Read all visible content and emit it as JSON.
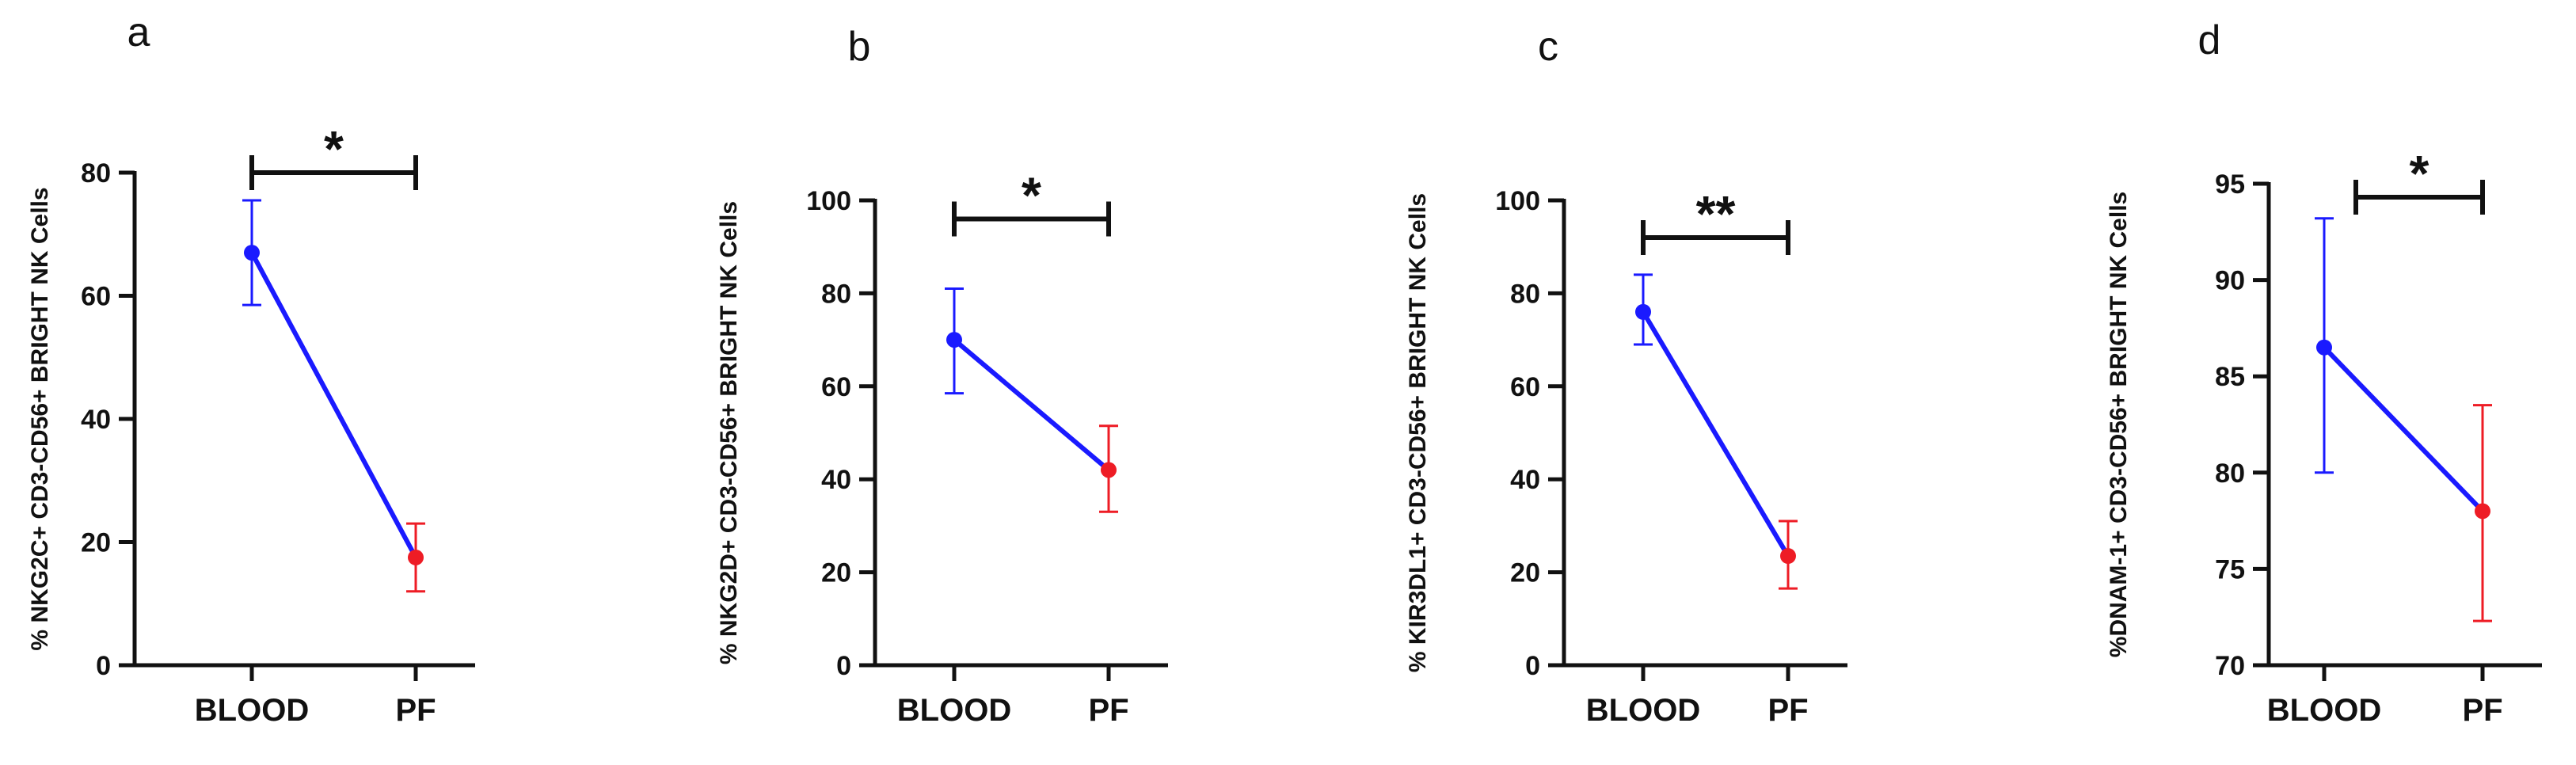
{
  "chart_data": [
    {
      "type": "line",
      "panel": "a",
      "ylabel": "% NKG2C+ CD3-CD56+ BRIGHT NK Cells",
      "categories": [
        "BLOOD",
        "PF"
      ],
      "ylim": [
        0,
        80
      ],
      "yticks": [
        0,
        20,
        40,
        60,
        80
      ],
      "series": [
        {
          "values": [
            67,
            17.5
          ],
          "err_low": [
            58.5,
            12
          ],
          "err_high": [
            75.5,
            23
          ],
          "point_colors": [
            "#1a1aff",
            "#ee1c25"
          ]
        }
      ],
      "significance": {
        "label": "*",
        "from": 0,
        "to": 1,
        "y": 80
      },
      "line_color": "#1a1aff"
    },
    {
      "type": "line",
      "panel": "b",
      "ylabel": "% NKG2D+ CD3-CD56+ BRIGHT NK Cells",
      "categories": [
        "BLOOD",
        "PF"
      ],
      "ylim": [
        0,
        100
      ],
      "yticks": [
        0,
        20,
        40,
        60,
        80,
        100
      ],
      "series": [
        {
          "values": [
            70,
            42
          ],
          "err_low": [
            58.5,
            33
          ],
          "err_high": [
            81,
            51.5
          ],
          "point_colors": [
            "#1a1aff",
            "#ee1c25"
          ]
        }
      ],
      "significance": {
        "label": "*",
        "from": 0,
        "to": 1,
        "y": 96
      },
      "line_color": "#1a1aff"
    },
    {
      "type": "line",
      "panel": "c",
      "ylabel": "% KIR3DL1+ CD3-CD56+ BRIGHT NK Cells",
      "categories": [
        "BLOOD",
        "PF"
      ],
      "ylim": [
        0,
        100
      ],
      "yticks": [
        0,
        20,
        40,
        60,
        80,
        100
      ],
      "series": [
        {
          "values": [
            76,
            23.5
          ],
          "err_low": [
            69,
            16.5
          ],
          "err_high": [
            84,
            31
          ],
          "point_colors": [
            "#1a1aff",
            "#ee1c25"
          ]
        }
      ],
      "significance": {
        "label": "**",
        "from": 0,
        "to": 1,
        "y": 92
      },
      "line_color": "#1a1aff"
    },
    {
      "type": "line",
      "panel": "d",
      "ylabel": "%DNAM-1+ CD3-CD56+ BRIGHT NK Cells",
      "categories": [
        "BLOOD",
        "PF"
      ],
      "ylim": [
        70,
        95
      ],
      "yticks": [
        70,
        75,
        80,
        85,
        90,
        95
      ],
      "series": [
        {
          "values": [
            86.5,
            78
          ],
          "err_low": [
            80,
            72.3
          ],
          "err_high": [
            93.2,
            83.5
          ],
          "point_colors": [
            "#1a1aff",
            "#ee1c25"
          ]
        }
      ],
      "significance": {
        "label": "*",
        "from": 0.2,
        "to": 1,
        "y": 94.3
      },
      "line_color": "#1a1aff"
    }
  ]
}
